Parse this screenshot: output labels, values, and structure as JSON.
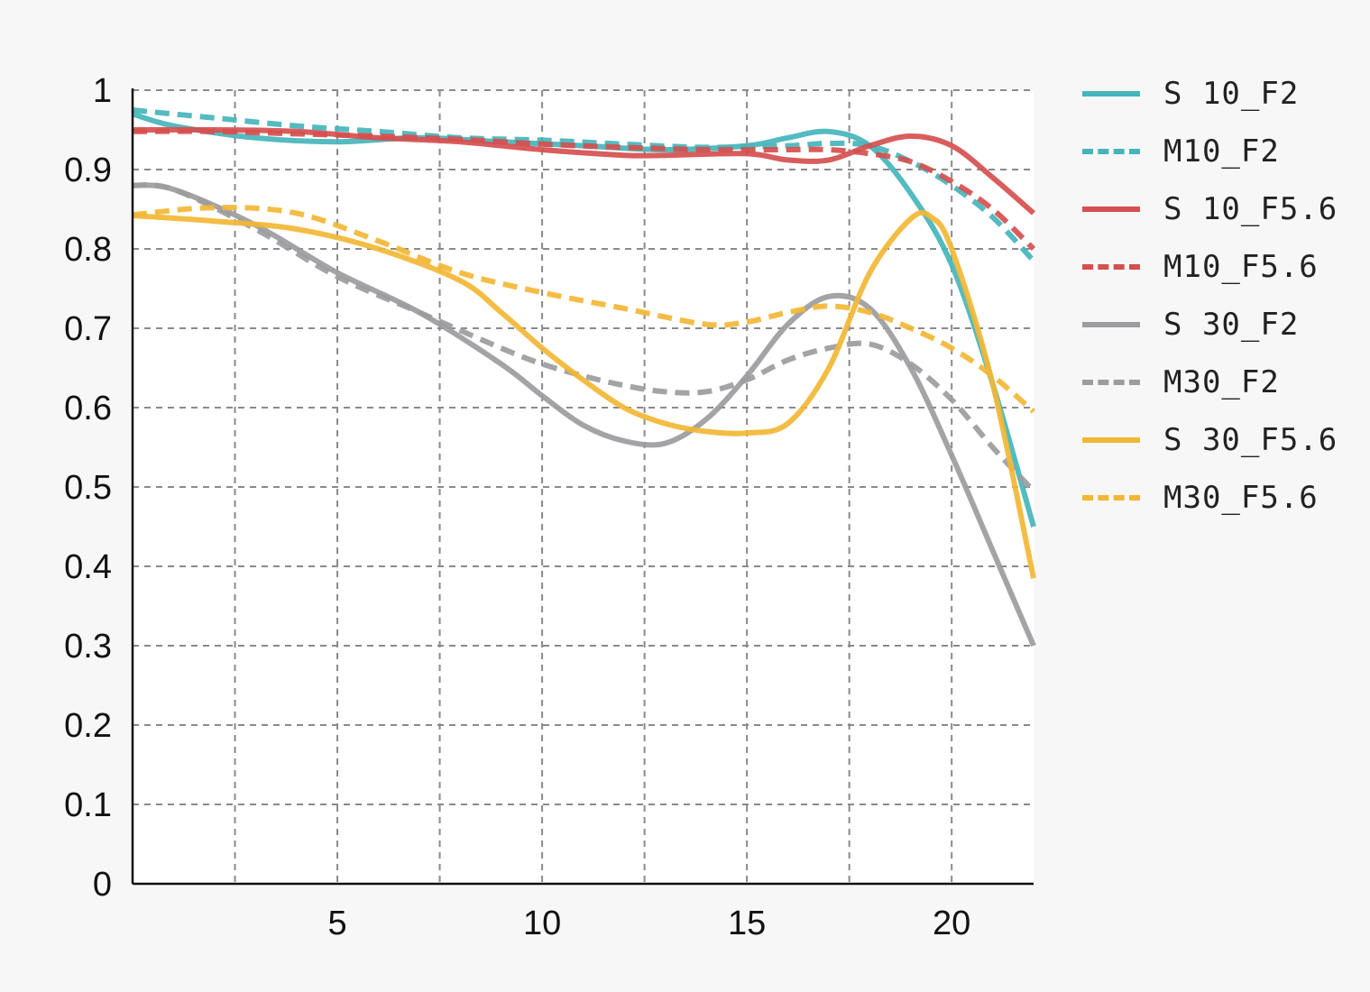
{
  "chart_data": {
    "type": "line",
    "title": "",
    "xlabel": "",
    "ylabel": "",
    "xlim": [
      0,
      22
    ],
    "ylim": [
      0,
      1
    ],
    "x_ticks": [
      5,
      10,
      15,
      20
    ],
    "y_ticks": [
      0,
      0.1,
      0.2,
      0.3,
      0.4,
      0.5,
      0.6,
      0.7,
      0.8,
      0.9,
      1
    ],
    "x_tick_labels": [
      "5",
      "10",
      "15",
      "20"
    ],
    "y_tick_labels": [
      "0",
      "0.1",
      "0.2",
      "0.3",
      "0.4",
      "0.5",
      "0.6",
      "0.7",
      "0.8",
      "0.9",
      "1"
    ],
    "grid": true,
    "legend_position": "right",
    "series": [
      {
        "name": "S 10_F2",
        "color": "#45b5bb",
        "dash": false,
        "x": [
          0,
          1,
          3,
          5,
          7,
          9,
          11,
          13,
          15,
          16,
          17,
          18,
          19,
          20,
          21,
          22
        ],
        "y": [
          0.97,
          0.955,
          0.94,
          0.935,
          0.94,
          0.935,
          0.93,
          0.925,
          0.93,
          0.94,
          0.948,
          0.93,
          0.87,
          0.78,
          0.63,
          0.45
        ]
      },
      {
        "name": "M10_F2",
        "color": "#45b5bb",
        "dash": true,
        "x": [
          0,
          2,
          4,
          6,
          8,
          10,
          12,
          14,
          16,
          17,
          18,
          19,
          20,
          21,
          22
        ],
        "y": [
          0.975,
          0.965,
          0.955,
          0.948,
          0.94,
          0.937,
          0.932,
          0.928,
          0.93,
          0.933,
          0.93,
          0.91,
          0.88,
          0.84,
          0.785
        ]
      },
      {
        "name": "S 10_F5.6",
        "color": "#d64f4f",
        "dash": false,
        "x": [
          0,
          2,
          4,
          6,
          8,
          10,
          12,
          13,
          15,
          16,
          17,
          18,
          19,
          20,
          21,
          22
        ],
        "y": [
          0.95,
          0.95,
          0.948,
          0.94,
          0.935,
          0.925,
          0.918,
          0.918,
          0.92,
          0.912,
          0.912,
          0.93,
          0.942,
          0.93,
          0.89,
          0.845
        ]
      },
      {
        "name": "M10_F5.6",
        "color": "#d64f4f",
        "dash": true,
        "x": [
          0,
          2,
          4,
          6,
          8,
          10,
          12,
          14,
          16,
          17,
          18,
          19,
          20,
          21,
          22
        ],
        "y": [
          0.948,
          0.948,
          0.945,
          0.942,
          0.938,
          0.932,
          0.928,
          0.925,
          0.925,
          0.925,
          0.92,
          0.91,
          0.885,
          0.85,
          0.8
        ]
      },
      {
        "name": "S 30_F2",
        "color": "#9c9c9e",
        "dash": false,
        "x": [
          0,
          1,
          3,
          5,
          7,
          9,
          10,
          11,
          12,
          13,
          14,
          15,
          16,
          17,
          18,
          19,
          20,
          21,
          22
        ],
        "y": [
          0.88,
          0.875,
          0.83,
          0.77,
          0.72,
          0.655,
          0.615,
          0.578,
          0.558,
          0.555,
          0.585,
          0.64,
          0.705,
          0.74,
          0.725,
          0.65,
          0.54,
          0.42,
          0.3
        ]
      },
      {
        "name": "M30_F2",
        "color": "#9c9c9e",
        "dash": true,
        "x": [
          0,
          1,
          3,
          5,
          7,
          9,
          10,
          11,
          12,
          13,
          14,
          15,
          16,
          17,
          18,
          19,
          20,
          21,
          22
        ],
        "y": [
          0.88,
          0.875,
          0.825,
          0.765,
          0.72,
          0.675,
          0.655,
          0.64,
          0.628,
          0.62,
          0.62,
          0.635,
          0.66,
          0.675,
          0.68,
          0.655,
          0.61,
          0.55,
          0.495
        ]
      },
      {
        "name": "S 30_F5.6",
        "color": "#f2b735",
        "dash": false,
        "x": [
          0,
          2,
          4,
          6,
          8,
          9,
          10,
          11,
          12,
          13,
          14,
          15,
          16,
          17,
          18,
          19,
          19.5,
          20,
          21,
          22
        ],
        "y": [
          0.842,
          0.835,
          0.825,
          0.8,
          0.76,
          0.72,
          0.675,
          0.635,
          0.6,
          0.58,
          0.57,
          0.568,
          0.58,
          0.65,
          0.77,
          0.838,
          0.84,
          0.8,
          0.63,
          0.385
        ]
      },
      {
        "name": "M30_F5.6",
        "color": "#f2b735",
        "dash": true,
        "x": [
          0,
          2,
          4,
          6,
          8,
          10,
          12,
          14,
          15,
          16,
          17,
          18,
          19,
          20,
          21,
          22
        ],
        "y": [
          0.843,
          0.852,
          0.845,
          0.81,
          0.77,
          0.745,
          0.725,
          0.705,
          0.708,
          0.72,
          0.728,
          0.72,
          0.7,
          0.675,
          0.64,
          0.595
        ]
      }
    ]
  }
}
